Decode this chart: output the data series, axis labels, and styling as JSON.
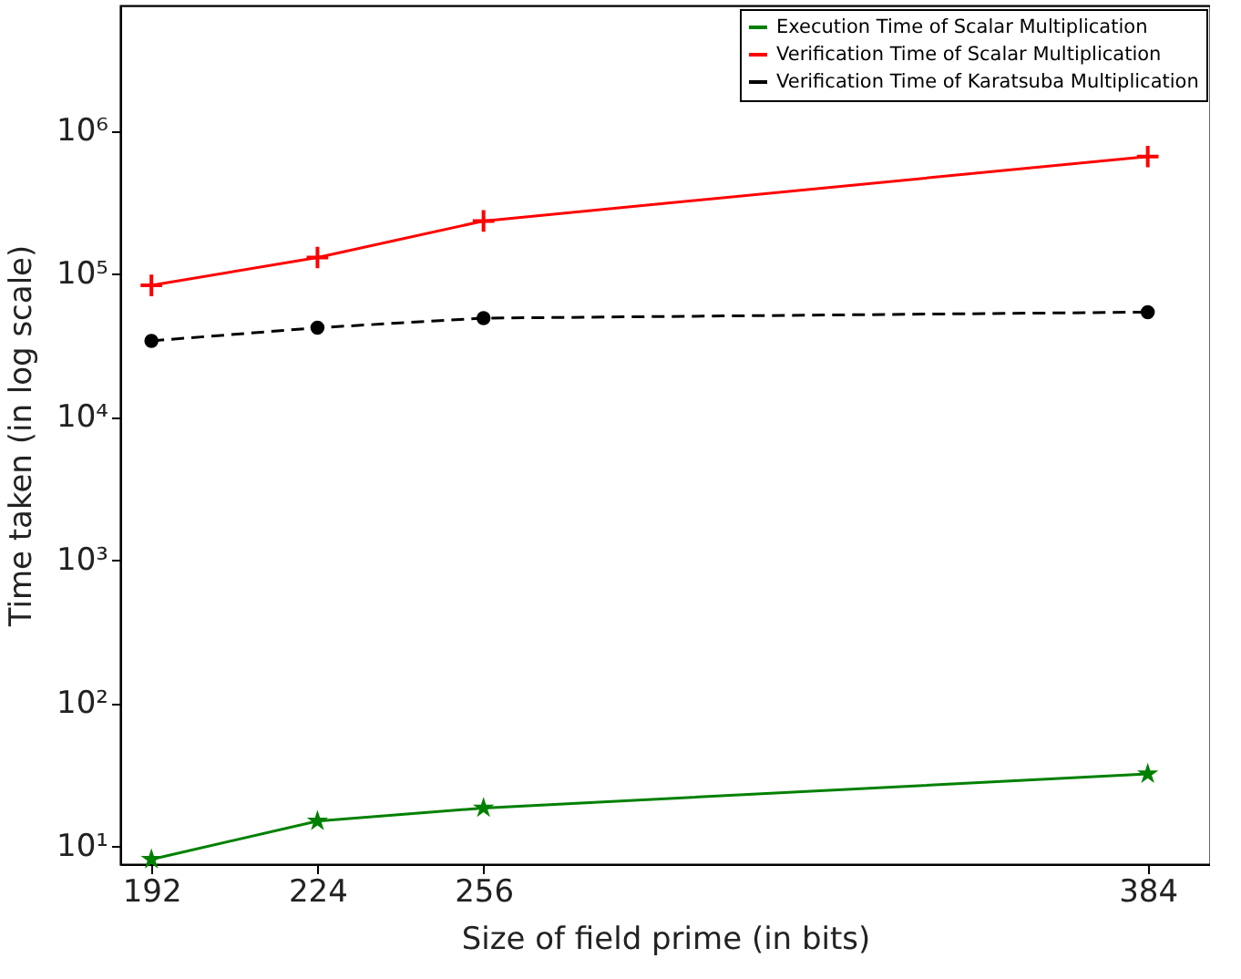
{
  "chart_data": {
    "type": "line",
    "xlabel": "Size of field prime (in bits)",
    "ylabel": "Time taken (in log scale)",
    "x": [
      192,
      224,
      256,
      384
    ],
    "xlim": [
      186,
      396
    ],
    "xticks": [
      192,
      224,
      256,
      384
    ],
    "ylim": [
      7.5,
      7500000
    ],
    "log": true,
    "yticks": [
      {
        "value": 10,
        "label": "10¹"
      },
      {
        "value": 100,
        "label": "10²"
      },
      {
        "value": 1000,
        "label": "10³"
      },
      {
        "value": 10000,
        "label": "10⁴"
      },
      {
        "value": 100000,
        "label": "10⁵"
      },
      {
        "value": 1000000,
        "label": "10⁶"
      }
    ],
    "grid": false,
    "legend": "top right",
    "series": [
      {
        "name": "Execution Time of Scalar Multiplication",
        "color": "#008000",
        "marker": "star",
        "line_style": "solid",
        "values": [
          8.1,
          15,
          18.5,
          32
        ]
      },
      {
        "name": "Verification Time of Scalar Multiplication",
        "color": "#ff0000",
        "marker": "cross",
        "line_style": "solid",
        "values": [
          83000,
          130000,
          234000,
          660000
        ]
      },
      {
        "name": "Verification Time of Karatsuba Multiplication",
        "color": "#000000",
        "marker": "circle",
        "line_style": "dashed",
        "values": [
          34000,
          42000,
          49000,
          54000
        ]
      }
    ]
  }
}
